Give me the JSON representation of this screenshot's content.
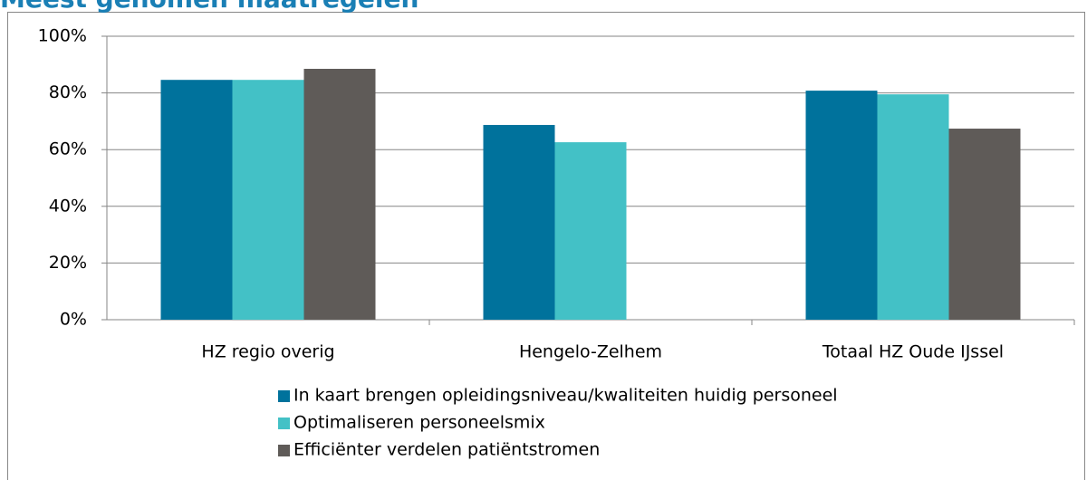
{
  "chart_data": {
    "type": "bar",
    "title": "Meest genomen maatregelen",
    "categories": [
      "HZ regio overig",
      "Hengelo-Zelhem",
      "Totaal HZ Oude IJssel"
    ],
    "series": [
      {
        "name": "In kaart brengen opleidingsniveau/kwaliteiten huidig personeel",
        "color": "#00729c",
        "values": [
          84.6,
          68.7,
          80.8
        ]
      },
      {
        "name": "Optimaliseren personeelsmix",
        "color": "#43c1c6",
        "values": [
          84.6,
          62.6,
          79.5
        ]
      },
      {
        "name": "Efficiënter verdelen patiëntstromen",
        "color": "#5f5b58",
        "values": [
          88.5,
          0,
          67.4
        ]
      }
    ],
    "ylim": [
      0,
      100
    ],
    "yticks": [
      {
        "value": 0,
        "label": "0%"
      },
      {
        "value": 20,
        "label": "20%"
      },
      {
        "value": 40,
        "label": "40%"
      },
      {
        "value": 60,
        "label": "60%"
      },
      {
        "value": 80,
        "label": "80%"
      },
      {
        "value": 100,
        "label": "100%"
      }
    ],
    "grid": true,
    "legend": "bottom"
  }
}
